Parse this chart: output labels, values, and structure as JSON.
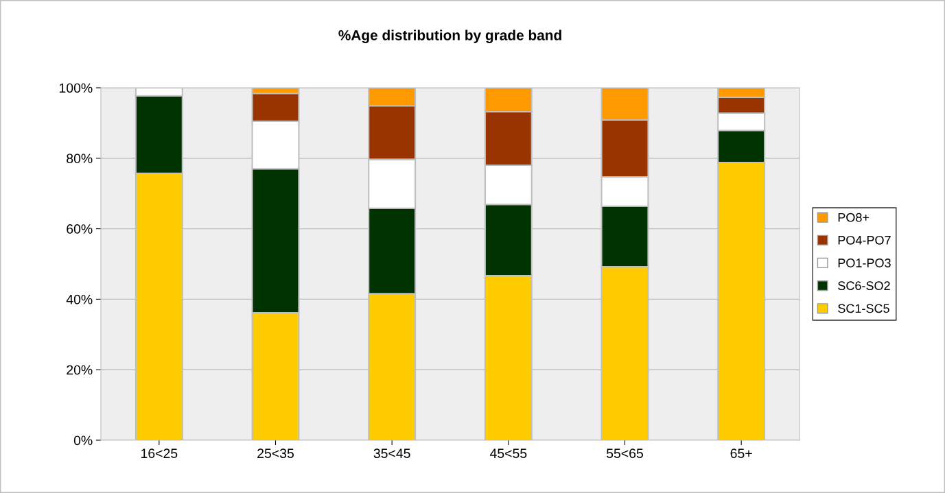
{
  "chart_data": {
    "type": "bar",
    "title": "%Age distribution by grade band",
    "stacked": true,
    "categories": [
      "16<25",
      "25<35",
      "35<45",
      "45<55",
      "55<65",
      "65+"
    ],
    "series": [
      {
        "name": "SC1-SC5",
        "color": "#ffcc00",
        "values": [
          75.7,
          36.2,
          41.6,
          46.7,
          49.2,
          78.8
        ]
      },
      {
        "name": "SC6-SO2",
        "color": "#003300",
        "values": [
          22.0,
          40.8,
          24.2,
          20.2,
          17.2,
          9.1
        ]
      },
      {
        "name": "PO1-PO3",
        "color": "#ffffff",
        "values": [
          2.3,
          13.5,
          13.9,
          11.1,
          8.3,
          4.9
        ]
      },
      {
        "name": "PO4-PO7",
        "color": "#993300",
        "values": [
          0,
          7.9,
          15.2,
          15.2,
          16.2,
          4.5
        ]
      },
      {
        "name": "PO8+",
        "color": "#ff9900",
        "values": [
          0,
          1.6,
          5.1,
          6.8,
          9.1,
          2.7
        ]
      }
    ],
    "ylim": [
      0,
      100
    ],
    "yticks": [
      {
        "value": 0,
        "label": "0%"
      },
      {
        "value": 20,
        "label": "20%"
      },
      {
        "value": 40,
        "label": "40%"
      },
      {
        "value": 60,
        "label": "60%"
      },
      {
        "value": 80,
        "label": "80%"
      },
      {
        "value": 100,
        "label": "100%"
      }
    ],
    "grid": "y",
    "legend": "right"
  }
}
